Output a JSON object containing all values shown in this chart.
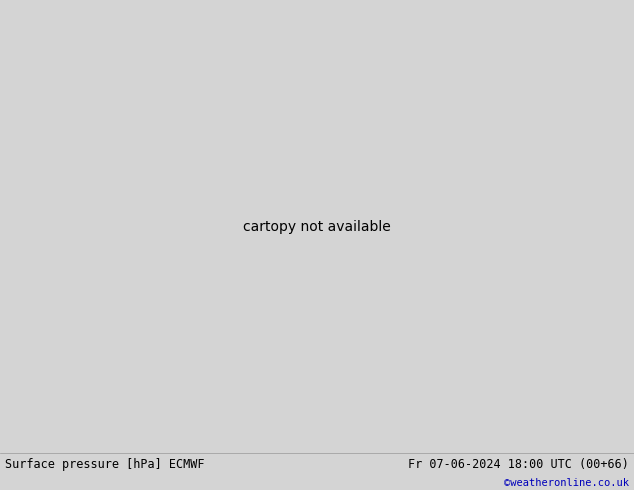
{
  "title_left": "Surface pressure [hPa] ECMWF",
  "title_right": "Fr 07-06-2024 18:00 UTC (00+66)",
  "watermark": "©weatheronline.co.uk",
  "bg_color": "#d4d4d4",
  "land_color": "#b8e890",
  "glacier_color": "#b0b0b0",
  "ocean_color": "#d4d4d4",
  "contour_color_black": "#000000",
  "contour_color_blue": "#0000bb",
  "contour_color_red": "#cc0000",
  "label_fontsize": 6.5,
  "title_fontsize": 8.5,
  "watermark_color": "#0000bb",
  "figsize": [
    6.34,
    4.9
  ],
  "dpi": 100,
  "lon_min": -110,
  "lon_max": 20,
  "lat_min": -60,
  "lat_max": 20
}
